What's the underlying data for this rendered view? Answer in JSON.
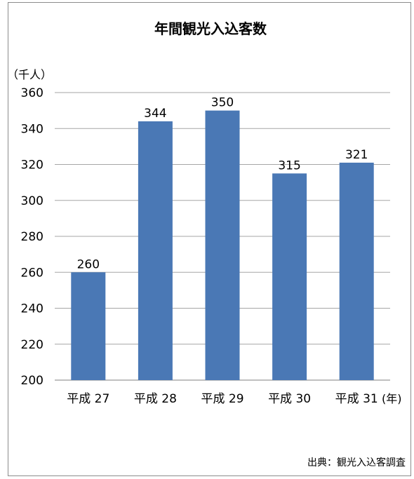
{
  "chart_data": {
    "type": "bar",
    "title": "年間観光入込客数",
    "ylabel": "（千人）",
    "xunit": "(年)",
    "categories": [
      "平成 27",
      "平成 28",
      "平成 29",
      "平成 30",
      "平成 31"
    ],
    "values": [
      260,
      344,
      350,
      315,
      321
    ],
    "ylim": [
      200,
      360
    ],
    "yticks": [
      200,
      220,
      240,
      260,
      280,
      300,
      320,
      340,
      360
    ],
    "grid": true,
    "legend": "none",
    "bar_color": "#4a78b5",
    "grid_color": "#a6a6a6",
    "source": "出典：観光入込客調査"
  }
}
